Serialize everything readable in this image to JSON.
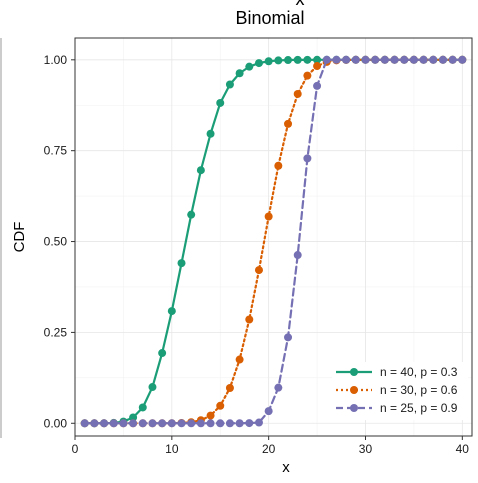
{
  "chart_data": {
    "type": "line",
    "top_clipped_text": "x",
    "title": "Binomial",
    "xlabel": "x",
    "ylabel": "CDF",
    "xlim": [
      0,
      41
    ],
    "ylim": [
      -0.035,
      1.06
    ],
    "x_ticks": [
      0,
      10,
      20,
      30,
      40
    ],
    "x_tick_labels": [
      "0",
      "10",
      "20",
      "30",
      "40"
    ],
    "y_ticks": [
      0,
      0.25,
      0.5,
      0.75,
      1
    ],
    "y_tick_labels": [
      "0.00",
      "0.25",
      "0.50",
      "0.75",
      "1.00"
    ],
    "grid": true,
    "legend_position": "bottom-right",
    "x": [
      1,
      2,
      3,
      4,
      5,
      6,
      7,
      8,
      9,
      10,
      11,
      12,
      13,
      14,
      15,
      16,
      17,
      18,
      19,
      20,
      21,
      22,
      23,
      24,
      25,
      26,
      27,
      28,
      29,
      30,
      31,
      32,
      33,
      34,
      35,
      36,
      37,
      38,
      39,
      40
    ],
    "series": [
      {
        "name": "n = 40, p = 0.3",
        "color": "#1b9e77",
        "dash": "solid",
        "values": [
          0.0,
          0.0,
          0.0002,
          0.001,
          0.0047,
          0.016,
          0.0435,
          0.0997,
          0.1932,
          0.3087,
          0.4406,
          0.574,
          0.6962,
          0.7966,
          0.8813,
          0.9321,
          0.963,
          0.9812,
          0.991,
          0.996,
          0.9983,
          0.9994,
          0.9998,
          0.9999,
          1.0,
          1.0,
          1.0,
          1.0,
          1.0,
          1.0,
          1.0,
          1.0,
          1.0,
          1.0,
          1.0,
          1.0,
          1.0,
          1.0,
          1.0,
          1.0
        ]
      },
      {
        "name": "n = 30, p = 0.6",
        "color": "#d95f02",
        "dash": "dotted",
        "values": [
          0.0,
          0.0,
          0.0,
          0.0,
          0.0,
          0.0,
          0.0,
          0.0,
          0.0,
          0.0002,
          0.0009,
          0.0029,
          0.0083,
          0.0212,
          0.0481,
          0.0971,
          0.1754,
          0.2855,
          0.4215,
          0.5689,
          0.7085,
          0.8237,
          0.906,
          0.9565,
          0.9828,
          0.9943,
          0.9985,
          0.9997,
          1.0,
          1.0,
          1.0,
          1.0,
          1.0,
          1.0,
          1.0,
          1.0,
          1.0,
          1.0,
          1.0,
          1.0
        ]
      },
      {
        "name": "n = 25, p = 0.9",
        "color": "#7570b3",
        "dash": "dashed",
        "values": [
          0.0,
          0.0,
          0.0,
          0.0,
          0.0,
          0.0,
          0.0,
          0.0,
          0.0,
          0.0,
          0.0,
          0.0,
          0.0,
          0.0,
          0.0,
          0.0,
          0.0001,
          0.0005,
          0.002,
          0.0334,
          0.098,
          0.2364,
          0.4629,
          0.7288,
          0.9282,
          1.0,
          1.0,
          1.0,
          1.0,
          1.0,
          1.0,
          1.0,
          1.0,
          1.0,
          1.0,
          1.0,
          1.0,
          1.0,
          1.0,
          1.0
        ]
      }
    ]
  }
}
